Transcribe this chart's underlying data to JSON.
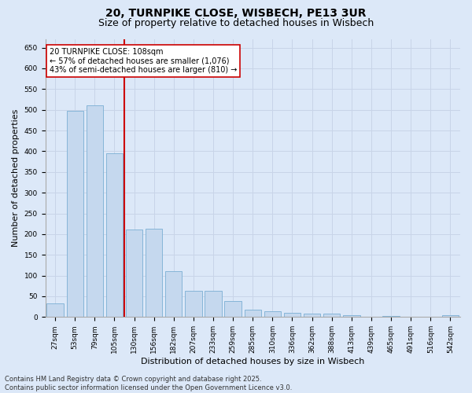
{
  "title_line1": "20, TURNPIKE CLOSE, WISBECH, PE13 3UR",
  "title_line2": "Size of property relative to detached houses in Wisbech",
  "xlabel": "Distribution of detached houses by size in Wisbech",
  "ylabel": "Number of detached properties",
  "categories": [
    "27sqm",
    "53sqm",
    "79sqm",
    "105sqm",
    "130sqm",
    "156sqm",
    "182sqm",
    "207sqm",
    "233sqm",
    "259sqm",
    "285sqm",
    "310sqm",
    "336sqm",
    "362sqm",
    "388sqm",
    "413sqm",
    "439sqm",
    "465sqm",
    "491sqm",
    "516sqm",
    "542sqm"
  ],
  "values": [
    32,
    497,
    510,
    395,
    212,
    213,
    110,
    63,
    63,
    38,
    17,
    14,
    10,
    9,
    9,
    5,
    0,
    3,
    1,
    0,
    5
  ],
  "bar_color": "#c5d8ee",
  "bar_edge_color": "#7aafd4",
  "grid_color": "#c8d4e8",
  "background_color": "#dce8f8",
  "vline_x": 3.5,
  "vline_color": "#cc0000",
  "annotation_text": "20 TURNPIKE CLOSE: 108sqm\n← 57% of detached houses are smaller (1,076)\n43% of semi-detached houses are larger (810) →",
  "annotation_box_color": "#ffffff",
  "annotation_box_edge": "#cc0000",
  "ylim": [
    0,
    670
  ],
  "yticks": [
    0,
    50,
    100,
    150,
    200,
    250,
    300,
    350,
    400,
    450,
    500,
    550,
    600,
    650
  ],
  "footer_line1": "Contains HM Land Registry data © Crown copyright and database right 2025.",
  "footer_line2": "Contains public sector information licensed under the Open Government Licence v3.0.",
  "title_fontsize": 10,
  "subtitle_fontsize": 9,
  "axis_label_fontsize": 8,
  "tick_fontsize": 6.5,
  "annotation_fontsize": 7,
  "footer_fontsize": 6
}
